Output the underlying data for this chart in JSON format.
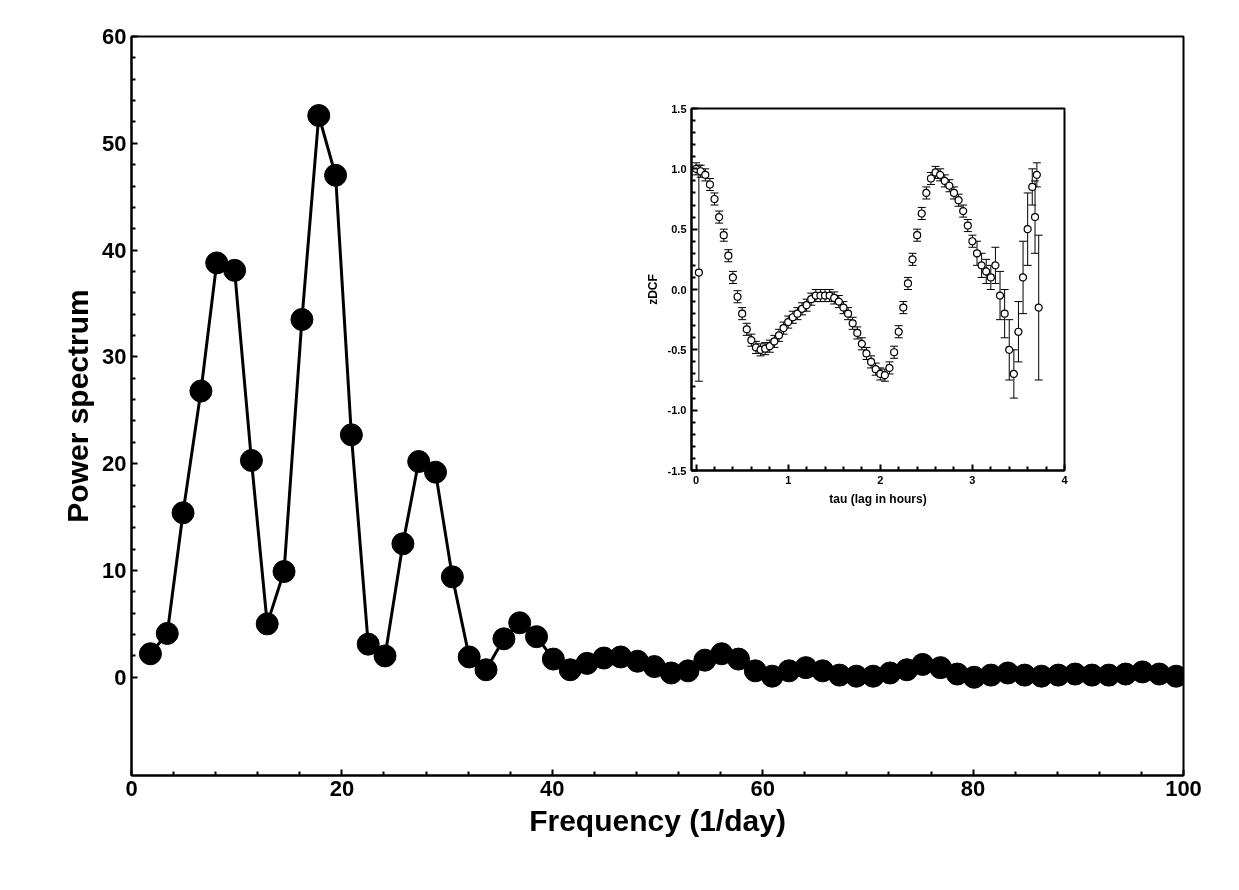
{
  "chart_data": [
    {
      "type": "line",
      "marker": "circle",
      "line_style": "solid",
      "grid": false,
      "xlabel": "Frequency (1/day)",
      "ylabel": "Power spectrum",
      "color": "#000000",
      "xlim": [
        0,
        100
      ],
      "ylim": [
        -9.2,
        60
      ],
      "xticks": [
        0,
        20,
        40,
        60,
        80,
        100
      ],
      "yticks": [
        0,
        10,
        20,
        30,
        40,
        50,
        60
      ],
      "x": [
        1.8,
        3.4,
        4.9,
        6.6,
        8.1,
        9.8,
        11.4,
        12.9,
        14.5,
        16.2,
        17.8,
        19.4,
        20.9,
        22.5,
        24.1,
        25.8,
        27.3,
        28.9,
        30.5,
        32.1,
        33.7,
        35.4,
        36.9,
        38.5,
        40.1,
        41.7,
        43.3,
        44.9,
        46.5,
        48.1,
        49.7,
        51.3,
        52.9,
        54.5,
        56.1,
        57.7,
        59.3,
        60.9,
        62.5,
        64.1,
        65.7,
        67.3,
        68.9,
        70.5,
        72.1,
        73.7,
        75.2,
        76.9,
        78.5,
        80.1,
        81.7,
        83.3,
        84.9,
        86.5,
        88.1,
        89.7,
        91.3,
        92.9,
        94.5,
        96.1,
        97.7,
        99.3
      ],
      "values": [
        2.2,
        4.1,
        15.4,
        26.8,
        38.8,
        38.1,
        20.3,
        5.0,
        9.9,
        33.5,
        52.6,
        47.0,
        22.7,
        3.1,
        2.0,
        12.5,
        20.2,
        19.2,
        9.4,
        1.9,
        0.7,
        3.6,
        5.1,
        3.8,
        1.7,
        0.7,
        1.3,
        1.8,
        1.9,
        1.5,
        1.0,
        0.4,
        0.6,
        1.6,
        2.2,
        1.7,
        0.6,
        0.1,
        0.6,
        0.9,
        0.6,
        0.2,
        0.1,
        0.1,
        0.4,
        0.7,
        1.2,
        0.9,
        0.3,
        0.0,
        0.2,
        0.4,
        0.2,
        0.1,
        0.2,
        0.3,
        0.2,
        0.2,
        0.3,
        0.5,
        0.3,
        0.1
      ]
    },
    {
      "type": "scatter",
      "marker": "circle",
      "grid": false,
      "xlabel": "tau (lag in hours)",
      "ylabel": "zDCF",
      "color": "#000000",
      "xlim": [
        -0.05,
        4
      ],
      "ylim": [
        -1.5,
        1.5
      ],
      "xticks": [
        0,
        1,
        2,
        3,
        4
      ],
      "yticks": [
        {
          "value": -1.5,
          "label": "-1.5"
        },
        {
          "value": -1,
          "label": "-1.0"
        },
        {
          "value": -0.5,
          "label": "-0.5"
        },
        {
          "value": 0,
          "label": "0.0"
        },
        {
          "value": 0.5,
          "label": "0.5"
        },
        {
          "value": 1,
          "label": "1.0"
        },
        {
          "value": 1.5,
          "label": "1.5"
        }
      ],
      "x": [
        0,
        0.03,
        0.05,
        0.1,
        0.15,
        0.2,
        0.25,
        0.3,
        0.35,
        0.4,
        0.45,
        0.5,
        0.55,
        0.6,
        0.65,
        0.7,
        0.75,
        0.8,
        0.85,
        0.9,
        0.95,
        1.0,
        1.05,
        1.1,
        1.15,
        1.2,
        1.25,
        1.3,
        1.35,
        1.4,
        1.45,
        1.5,
        1.55,
        1.6,
        1.65,
        1.7,
        1.75,
        1.8,
        1.85,
        1.9,
        1.95,
        2.0,
        2.05,
        2.1,
        2.15,
        2.2,
        2.25,
        2.3,
        2.35,
        2.4,
        2.45,
        2.5,
        2.55,
        2.6,
        2.65,
        2.7,
        2.75,
        2.8,
        2.85,
        2.9,
        2.95,
        3.0,
        3.05,
        3.1,
        3.15,
        3.2,
        3.25,
        3.3,
        3.35,
        3.4,
        3.45,
        3.5,
        3.55,
        3.6,
        3.65,
        3.68,
        3.7,
        3.72
      ],
      "values": [
        1.0,
        0.14,
        0.98,
        0.95,
        0.87,
        0.75,
        0.6,
        0.45,
        0.28,
        0.1,
        -0.06,
        -0.2,
        -0.33,
        -0.42,
        -0.48,
        -0.5,
        -0.49,
        -0.47,
        -0.43,
        -0.38,
        -0.32,
        -0.27,
        -0.23,
        -0.2,
        -0.16,
        -0.13,
        -0.08,
        -0.05,
        -0.05,
        -0.05,
        -0.05,
        -0.07,
        -0.1,
        -0.15,
        -0.2,
        -0.28,
        -0.36,
        -0.45,
        -0.53,
        -0.6,
        -0.66,
        -0.7,
        -0.71,
        -0.65,
        -0.52,
        -0.35,
        -0.15,
        0.05,
        0.25,
        0.45,
        0.63,
        0.8,
        0.92,
        0.97,
        0.95,
        0.9,
        0.86,
        0.8,
        0.74,
        0.65,
        0.53,
        0.4,
        0.3,
        0.2,
        0.15,
        0.1,
        0.2,
        -0.05,
        -0.2,
        -0.5,
        -0.7,
        -0.35,
        0.1,
        0.5,
        0.85,
        0.6,
        0.95,
        -0.15
      ],
      "errors": [
        0.05,
        [
          -0.76,
          1.03
        ],
        0.05,
        0.05,
        0.05,
        0.05,
        0.05,
        0.05,
        0.05,
        0.05,
        0.05,
        0.05,
        0.05,
        0.05,
        0.05,
        0.05,
        0.05,
        0.05,
        0.05,
        0.05,
        0.05,
        0.05,
        0.05,
        0.05,
        0.05,
        0.05,
        0.05,
        0.05,
        0.05,
        0.05,
        0.05,
        0.05,
        0.05,
        0.05,
        0.05,
        0.05,
        0.05,
        0.05,
        0.05,
        0.05,
        0.05,
        0.05,
        0.05,
        0.05,
        0.05,
        0.05,
        0.05,
        0.05,
        0.05,
        0.05,
        0.05,
        0.05,
        0.05,
        0.05,
        0.05,
        0.05,
        0.05,
        0.05,
        0.05,
        0.05,
        0.05,
        0.05,
        0.1,
        0.1,
        0.1,
        0.1,
        0.15,
        0.2,
        0.2,
        0.25,
        0.2,
        0.25,
        0.3,
        0.3,
        0.15,
        0.3,
        0.1,
        0.6
      ]
    }
  ]
}
